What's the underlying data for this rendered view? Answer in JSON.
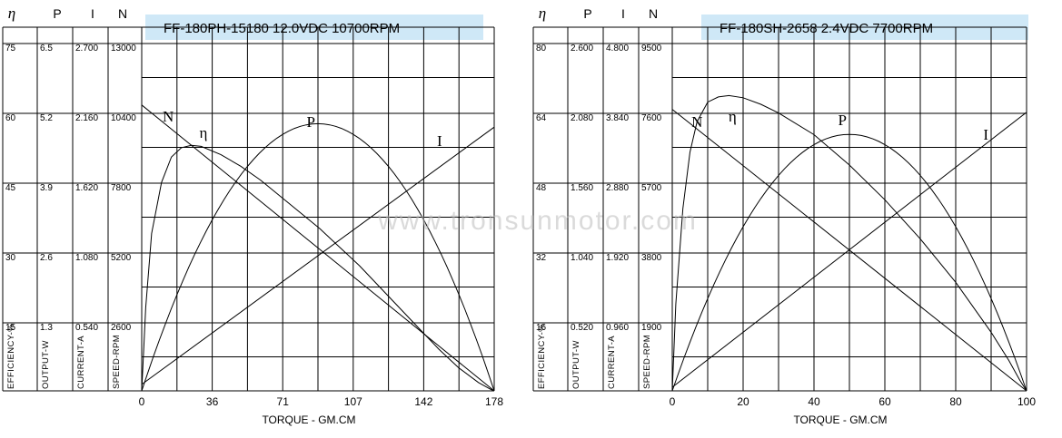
{
  "watermark": "www.tronsunmotor.com",
  "charts": [
    {
      "title": "FF-180PH-15180  12.0VDC   10700RPM",
      "headers": {
        "eta": "η",
        "p": "P",
        "i": "I",
        "n": "N"
      },
      "columns": [
        {
          "unit": "EFFICIENCY-%",
          "ticks": [
            "75",
            "60",
            "45",
            "30",
            "15"
          ]
        },
        {
          "unit": "OUTPUT-W",
          "ticks": [
            "6.5",
            "5.2",
            "3.9",
            "2.6",
            "1.3"
          ]
        },
        {
          "unit": "CURRENT-A",
          "ticks": [
            "2.700",
            "2.160",
            "1.620",
            "1.080",
            "0.540"
          ]
        },
        {
          "unit": "SPEED-RPM",
          "ticks": [
            "13000",
            "10400",
            "7800",
            "5200",
            "2600"
          ]
        }
      ],
      "x_ticks": [
        "0",
        "36",
        "71",
        "107",
        "142",
        "178"
      ],
      "xlabel": "TORQUE - GM.CM",
      "curve_labels": {
        "n": "N",
        "eta": "η",
        "p": "P",
        "i": "I"
      }
    },
    {
      "title": "FF-180SH-2658  2.4VDC  7700RPM",
      "headers": {
        "eta": "η",
        "p": "P",
        "i": "I",
        "n": "N"
      },
      "columns": [
        {
          "unit": "EFFICIENCY-%",
          "ticks": [
            "80",
            "64",
            "48",
            "32",
            "16"
          ]
        },
        {
          "unit": "OUTPUT-W",
          "ticks": [
            "2.600",
            "2.080",
            "1.560",
            "1.040",
            "0.520"
          ]
        },
        {
          "unit": "CURRENT-A",
          "ticks": [
            "4.800",
            "3.840",
            "2.880",
            "1.920",
            "0.960"
          ]
        },
        {
          "unit": "SPEED-RPM",
          "ticks": [
            "9500",
            "7600",
            "5700",
            "3800",
            "1900"
          ]
        }
      ],
      "x_ticks": [
        "0",
        "20",
        "40",
        "60",
        "80",
        "100"
      ],
      "xlabel": "TORQUE - GM.CM",
      "curve_labels": {
        "n": "N",
        "eta": "η",
        "p": "P",
        "i": "I"
      }
    }
  ],
  "chart_data": [
    {
      "type": "line",
      "title": "FF-180PH-15180  12.0VDC   10700RPM",
      "xlabel": "TORQUE - GM.CM",
      "xlim": [
        0,
        178
      ],
      "y_axes": [
        {
          "name": "EFFICIENCY-%",
          "max": 75
        },
        {
          "name": "OUTPUT-W",
          "max": 6.5
        },
        {
          "name": "CURRENT-A",
          "max": 2.7
        },
        {
          "name": "SPEED-RPM",
          "max": 13000
        }
      ],
      "series": [
        {
          "name": "N",
          "axis": "SPEED-RPM",
          "x": [
            0,
            178
          ],
          "y": [
            10700,
            0
          ]
        },
        {
          "name": "I",
          "axis": "CURRENT-A",
          "x": [
            0,
            178
          ],
          "y": [
            0.05,
            2.05
          ]
        },
        {
          "name": "P",
          "axis": "OUTPUT-W",
          "x": [
            0,
            89,
            178
          ],
          "y": [
            0,
            5.0,
            0
          ]
        },
        {
          "name": "η",
          "axis": "EFFICIENCY-%",
          "x": [
            0,
            2,
            5,
            10,
            15,
            20,
            25,
            30,
            40,
            50,
            60,
            70,
            80,
            90,
            100,
            110,
            120,
            130,
            140,
            150,
            160,
            170,
            176,
            178
          ],
          "y": [
            0,
            18,
            34,
            45,
            50.5,
            52.5,
            53,
            52.8,
            51,
            48.5,
            45.5,
            42,
            38.5,
            35,
            31,
            27,
            22.5,
            18,
            13.5,
            9,
            5,
            1.8,
            0.4,
            0
          ]
        }
      ]
    },
    {
      "type": "line",
      "title": "FF-180SH-2658  2.4VDC  7700RPM",
      "xlabel": "TORQUE - GM.CM",
      "xlim": [
        0,
        100
      ],
      "y_axes": [
        {
          "name": "EFFICIENCY-%",
          "max": 80
        },
        {
          "name": "OUTPUT-W",
          "max": 2.6
        },
        {
          "name": "CURRENT-A",
          "max": 4.8
        },
        {
          "name": "SPEED-RPM",
          "max": 9500
        }
      ],
      "series": [
        {
          "name": "N",
          "axis": "SPEED-RPM",
          "x": [
            0,
            100
          ],
          "y": [
            7700,
            0
          ]
        },
        {
          "name": "I",
          "axis": "CURRENT-A",
          "x": [
            0,
            100
          ],
          "y": [
            0.05,
            3.85
          ]
        },
        {
          "name": "P",
          "axis": "OUTPUT-W",
          "x": [
            0,
            50,
            100
          ],
          "y": [
            0,
            1.92,
            0
          ]
        },
        {
          "name": "η",
          "axis": "EFFICIENCY-%",
          "x": [
            0,
            1,
            3,
            5,
            7,
            10,
            13,
            16,
            20,
            25,
            30,
            40,
            50,
            60,
            70,
            80,
            90,
            95,
            98,
            100
          ],
          "y": [
            0,
            20,
            42,
            55,
            62,
            66.5,
            67.7,
            68,
            67.5,
            66,
            64,
            59,
            52,
            44,
            35,
            25,
            13.5,
            7,
            2.6,
            0
          ]
        }
      ]
    }
  ]
}
